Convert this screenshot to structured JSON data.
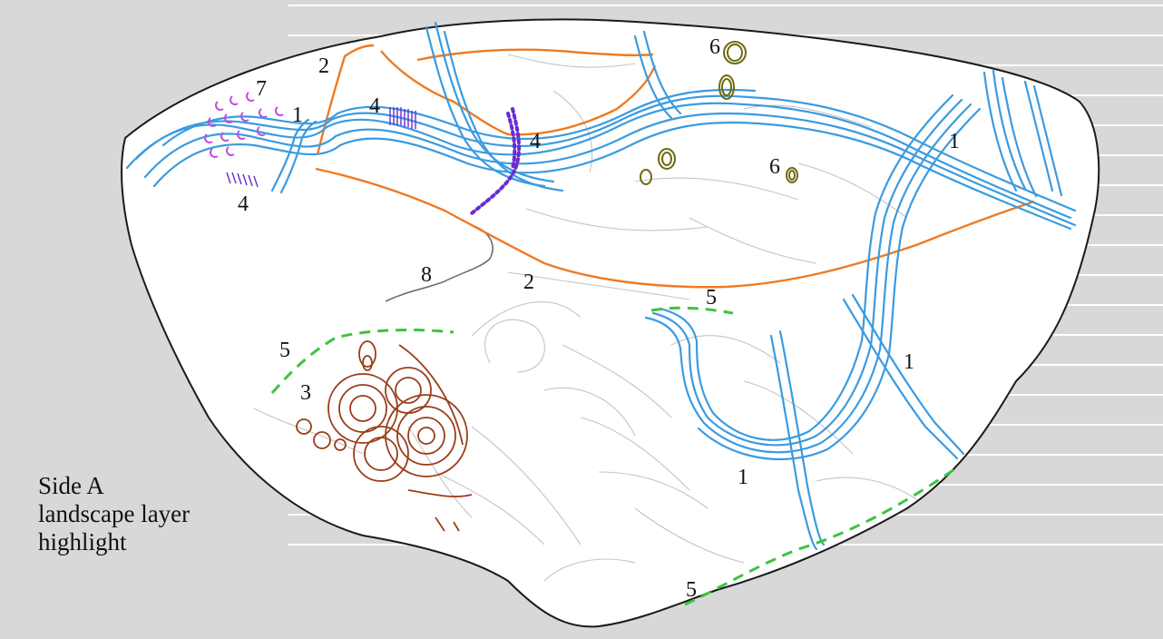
{
  "caption": {
    "line1": "Side A",
    "line2": "landscape layer",
    "line3": "highlight"
  },
  "colors": {
    "background": "#d8d8d8",
    "stripe": "#ffffff",
    "stone_fill": "#ffffff",
    "stone_outline": "#1a1a1a",
    "layer_1_river": "#3a9be0",
    "layer_2_outline": "#ee7a22",
    "layer_3_spirals": "#9a3d1a",
    "layer_4_purple": "#6a2bd0",
    "layer_5_green": "#3cc43c",
    "layer_6_olive": "#6f6a10",
    "layer_7_magenta": "#c24be0",
    "layer_8_grey": "#6e6e6e",
    "background_incisions": "#c4c4c4"
  },
  "labels": [
    {
      "id": "label-1-a",
      "text": "1"
    },
    {
      "id": "label-1-b",
      "text": "1"
    },
    {
      "id": "label-1-c",
      "text": "1"
    },
    {
      "id": "label-1-d",
      "text": "1"
    },
    {
      "id": "label-2-a",
      "text": "2"
    },
    {
      "id": "label-2-b",
      "text": "2"
    },
    {
      "id": "label-3",
      "text": "3"
    },
    {
      "id": "label-4-a",
      "text": "4"
    },
    {
      "id": "label-4-b",
      "text": "4"
    },
    {
      "id": "label-4-c",
      "text": "4"
    },
    {
      "id": "label-5-a",
      "text": "5"
    },
    {
      "id": "label-5-b",
      "text": "5"
    },
    {
      "id": "label-5-c",
      "text": "5"
    },
    {
      "id": "label-6-a",
      "text": "6"
    },
    {
      "id": "label-6-b",
      "text": "6"
    },
    {
      "id": "label-7",
      "text": "7"
    },
    {
      "id": "label-8",
      "text": "8"
    }
  ]
}
